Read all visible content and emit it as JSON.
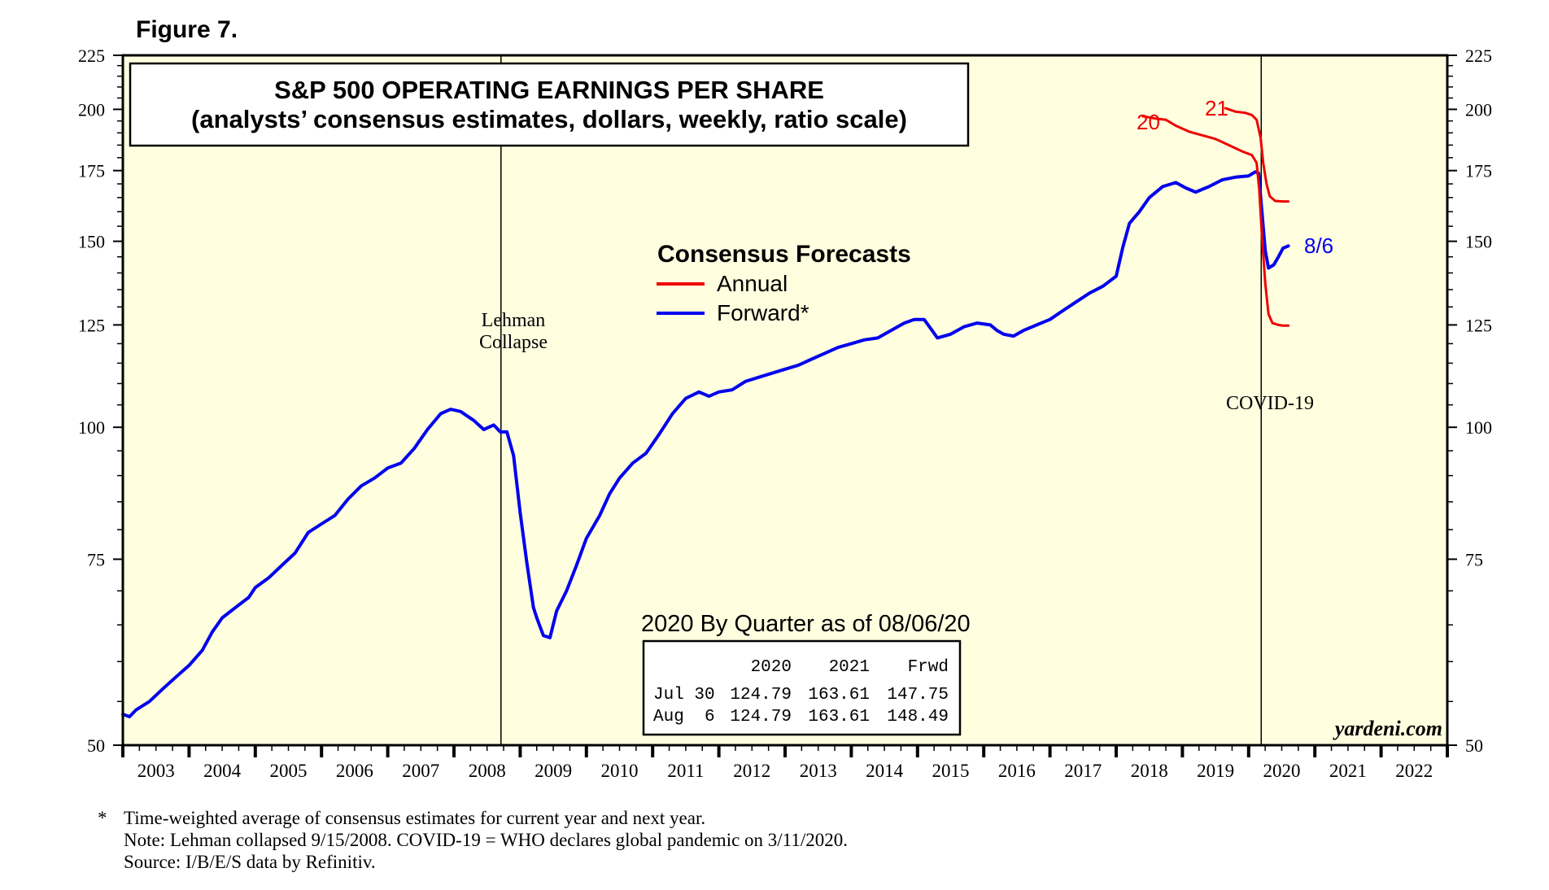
{
  "figure_label": "Figure 7.",
  "colors": {
    "plot_bg": "#ffffe0",
    "annual": "#ee0000",
    "forward": "#0000ee",
    "frame": "#000000"
  },
  "chart_data": {
    "type": "line",
    "title": "S&P 500 OPERATING EARNINGS PER SHARE",
    "subtitle": "(analysts’ consensus estimates, dollars, weekly, ratio scale)",
    "y_scale": "log",
    "ylim": [
      50,
      225
    ],
    "y_ticks": [
      50,
      75,
      100,
      125,
      150,
      175,
      200,
      225
    ],
    "y_tick_labels": [
      "50",
      "75",
      "100",
      "125",
      "150",
      "175",
      "200",
      "225"
    ],
    "y_minor_step": 5,
    "xlim": [
      2003,
      2023
    ],
    "x_tick_labels": [
      "2003",
      "2004",
      "2005",
      "2006",
      "2007",
      "2008",
      "2009",
      "2010",
      "2011",
      "2012",
      "2013",
      "2014",
      "2015",
      "2016",
      "2017",
      "2018",
      "2019",
      "2020",
      "2021",
      "2022"
    ],
    "legend": {
      "title": "Consensus Forecasts",
      "position": "top-center",
      "items": [
        {
          "label": "Annual",
          "color": "#ee0000"
        },
        {
          "label": "Forward*",
          "color": "#0000ee"
        }
      ]
    },
    "series": [
      {
        "name": "Forward*",
        "color": "#0000ee",
        "points": [
          [
            2003.0,
            53.5
          ],
          [
            2003.1,
            53.2
          ],
          [
            2003.2,
            54.0
          ],
          [
            2003.4,
            55.0
          ],
          [
            2003.6,
            56.5
          ],
          [
            2003.8,
            58.0
          ],
          [
            2004.0,
            59.5
          ],
          [
            2004.2,
            61.5
          ],
          [
            2004.35,
            64.0
          ],
          [
            2004.5,
            66.0
          ],
          [
            2004.7,
            67.5
          ],
          [
            2004.9,
            69.0
          ],
          [
            2005.0,
            70.5
          ],
          [
            2005.2,
            72.0
          ],
          [
            2005.4,
            74.0
          ],
          [
            2005.6,
            76.0
          ],
          [
            2005.8,
            79.5
          ],
          [
            2006.0,
            81.0
          ],
          [
            2006.2,
            82.5
          ],
          [
            2006.4,
            85.5
          ],
          [
            2006.6,
            88.0
          ],
          [
            2006.8,
            89.5
          ],
          [
            2007.0,
            91.5
          ],
          [
            2007.2,
            92.5
          ],
          [
            2007.4,
            95.5
          ],
          [
            2007.6,
            99.5
          ],
          [
            2007.8,
            103.0
          ],
          [
            2007.95,
            104.0
          ],
          [
            2008.1,
            103.5
          ],
          [
            2008.3,
            101.5
          ],
          [
            2008.45,
            99.5
          ],
          [
            2008.6,
            100.5
          ],
          [
            2008.7,
            99.0
          ],
          [
            2008.8,
            99.0
          ],
          [
            2008.9,
            94.0
          ],
          [
            2009.0,
            83.0
          ],
          [
            2009.1,
            74.5
          ],
          [
            2009.2,
            67.5
          ],
          [
            2009.25,
            66.0
          ],
          [
            2009.35,
            63.5
          ],
          [
            2009.45,
            63.2
          ],
          [
            2009.55,
            67.0
          ],
          [
            2009.7,
            70.0
          ],
          [
            2009.85,
            74.0
          ],
          [
            2010.0,
            78.5
          ],
          [
            2010.2,
            82.5
          ],
          [
            2010.35,
            86.5
          ],
          [
            2010.5,
            89.5
          ],
          [
            2010.7,
            92.5
          ],
          [
            2010.9,
            94.5
          ],
          [
            2011.1,
            98.5
          ],
          [
            2011.3,
            103.0
          ],
          [
            2011.5,
            106.5
          ],
          [
            2011.7,
            108.0
          ],
          [
            2011.85,
            107.0
          ],
          [
            2012.0,
            108.0
          ],
          [
            2012.2,
            108.5
          ],
          [
            2012.4,
            110.5
          ],
          [
            2012.6,
            111.5
          ],
          [
            2012.8,
            112.5
          ],
          [
            2013.0,
            113.5
          ],
          [
            2013.2,
            114.5
          ],
          [
            2013.4,
            116.0
          ],
          [
            2013.6,
            117.5
          ],
          [
            2013.8,
            119.0
          ],
          [
            2014.0,
            120.0
          ],
          [
            2014.2,
            121.0
          ],
          [
            2014.4,
            121.5
          ],
          [
            2014.6,
            123.5
          ],
          [
            2014.8,
            125.5
          ],
          [
            2014.95,
            126.5
          ],
          [
            2015.1,
            126.5
          ],
          [
            2015.2,
            124.0
          ],
          [
            2015.3,
            121.5
          ],
          [
            2015.5,
            122.5
          ],
          [
            2015.7,
            124.5
          ],
          [
            2015.9,
            125.5
          ],
          [
            2016.1,
            125.0
          ],
          [
            2016.2,
            123.5
          ],
          [
            2016.3,
            122.5
          ],
          [
            2016.45,
            122.0
          ],
          [
            2016.6,
            123.5
          ],
          [
            2016.8,
            125.0
          ],
          [
            2017.0,
            126.5
          ],
          [
            2017.2,
            129.0
          ],
          [
            2017.4,
            131.5
          ],
          [
            2017.6,
            134.0
          ],
          [
            2017.8,
            136.0
          ],
          [
            2018.0,
            139.0
          ],
          [
            2018.1,
            148.0
          ],
          [
            2018.2,
            156.0
          ],
          [
            2018.35,
            160.0
          ],
          [
            2018.5,
            165.0
          ],
          [
            2018.7,
            169.0
          ],
          [
            2018.9,
            170.5
          ],
          [
            2019.05,
            168.5
          ],
          [
            2019.2,
            167.0
          ],
          [
            2019.4,
            169.0
          ],
          [
            2019.6,
            171.5
          ],
          [
            2019.8,
            172.5
          ],
          [
            2020.0,
            173.0
          ],
          [
            2020.1,
            174.5
          ],
          [
            2020.15,
            174.0
          ],
          [
            2020.2,
            160.0
          ],
          [
            2020.25,
            147.0
          ],
          [
            2020.3,
            141.5
          ],
          [
            2020.38,
            142.5
          ],
          [
            2020.45,
            145.0
          ],
          [
            2020.52,
            147.75
          ],
          [
            2020.6,
            148.49
          ]
        ]
      },
      {
        "name": "Annual 2020",
        "label": "20",
        "color": "#ee0000",
        "points": [
          [
            2018.4,
            197.0
          ],
          [
            2018.6,
            196.0
          ],
          [
            2018.75,
            195.5
          ],
          [
            2018.9,
            193.0
          ],
          [
            2019.1,
            190.5
          ],
          [
            2019.3,
            189.0
          ],
          [
            2019.5,
            187.5
          ],
          [
            2019.7,
            185.0
          ],
          [
            2019.9,
            182.5
          ],
          [
            2020.05,
            181.0
          ],
          [
            2020.12,
            178.0
          ],
          [
            2020.16,
            168.0
          ],
          [
            2020.2,
            152.0
          ],
          [
            2020.25,
            137.0
          ],
          [
            2020.3,
            128.0
          ],
          [
            2020.36,
            125.5
          ],
          [
            2020.45,
            125.0
          ],
          [
            2020.52,
            124.79
          ],
          [
            2020.6,
            124.79
          ]
        ]
      },
      {
        "name": "Annual 2021",
        "label": "21",
        "color": "#ee0000",
        "points": [
          [
            2019.65,
            200.5
          ],
          [
            2019.8,
            199.0
          ],
          [
            2019.95,
            198.5
          ],
          [
            2020.05,
            197.5
          ],
          [
            2020.12,
            195.5
          ],
          [
            2020.18,
            188.0
          ],
          [
            2020.22,
            178.0
          ],
          [
            2020.27,
            170.0
          ],
          [
            2020.32,
            165.5
          ],
          [
            2020.4,
            163.8
          ],
          [
            2020.52,
            163.61
          ],
          [
            2020.6,
            163.61
          ]
        ]
      }
    ],
    "annotations": [
      {
        "id": "lehman",
        "x": 2008.71,
        "text_lines": [
          "Lehman",
          "Collapse"
        ]
      },
      {
        "id": "covid",
        "x": 2020.19,
        "text_lines": [
          "COVID-19"
        ]
      },
      {
        "id": "forward_end",
        "text": "8/6"
      },
      {
        "id": "label_20",
        "text": "20"
      },
      {
        "id": "label_21",
        "text": "21"
      }
    ]
  },
  "quarter_table": {
    "title": "2020 By Quarter as of 08/06/20",
    "headers": [
      "",
      "2020",
      "2021",
      "Frwd"
    ],
    "rows": [
      [
        "Jul 30",
        "124.79",
        "163.61",
        "147.75"
      ],
      [
        "Aug  6",
        "124.79",
        "163.61",
        "148.49"
      ]
    ]
  },
  "watermark": "yardeni.com",
  "footnotes": [
    {
      "marker": "*",
      "text": "Time-weighted average of consensus estimates for current year and next year."
    },
    {
      "marker": "",
      "text": "Note: Lehman collapsed 9/15/2008. COVID-19 = WHO declares global pandemic on 3/11/2020."
    },
    {
      "marker": "",
      "text": "Source: I/B/E/S data by Refinitiv."
    }
  ]
}
